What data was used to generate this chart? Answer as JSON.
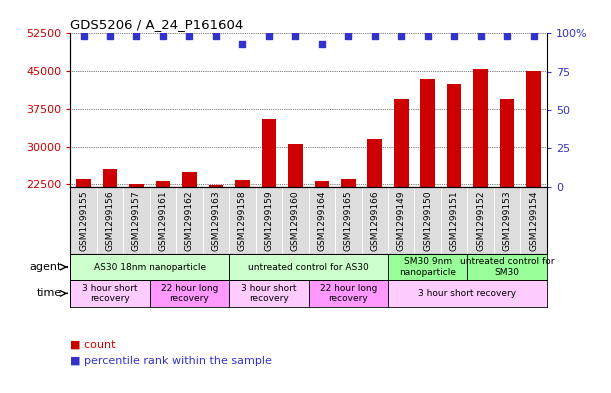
{
  "title": "GDS5206 / A_24_P161604",
  "samples": [
    "GSM1299155",
    "GSM1299156",
    "GSM1299157",
    "GSM1299161",
    "GSM1299162",
    "GSM1299163",
    "GSM1299158",
    "GSM1299159",
    "GSM1299160",
    "GSM1299164",
    "GSM1299165",
    "GSM1299166",
    "GSM1299149",
    "GSM1299150",
    "GSM1299151",
    "GSM1299152",
    "GSM1299153",
    "GSM1299154"
  ],
  "counts": [
    23500,
    25500,
    22600,
    23200,
    25000,
    22400,
    23300,
    35500,
    30500,
    23200,
    23500,
    31500,
    39500,
    43500,
    42500,
    45500,
    39500,
    45000
  ],
  "percentiles": [
    98,
    98,
    98,
    98,
    98,
    98,
    93,
    98,
    98,
    93,
    98,
    98,
    98,
    98,
    98,
    98,
    98,
    98
  ],
  "bar_color": "#cc0000",
  "dot_color": "#3333cc",
  "ymin": 22000,
  "ymax": 52500,
  "yticks": [
    22500,
    30000,
    37500,
    45000,
    52500
  ],
  "y2min": 0,
  "y2max": 100,
  "y2ticks": [
    0,
    25,
    50,
    75,
    100
  ],
  "agent_groups": [
    {
      "label": "AS30 18nm nanoparticle",
      "start": 0,
      "end": 6,
      "color": "#ccffcc"
    },
    {
      "label": "untreated control for AS30",
      "start": 6,
      "end": 12,
      "color": "#ccffcc"
    },
    {
      "label": "SM30 9nm\nnanoparticle",
      "start": 12,
      "end": 15,
      "color": "#99ff99"
    },
    {
      "label": "untreated control for\nSM30",
      "start": 15,
      "end": 18,
      "color": "#99ff99"
    }
  ],
  "time_groups": [
    {
      "label": "3 hour short\nrecovery",
      "start": 0,
      "end": 3,
      "color": "#ffccff"
    },
    {
      "label": "22 hour long\nrecovery",
      "start": 3,
      "end": 6,
      "color": "#ff99ff"
    },
    {
      "label": "3 hour short\nrecovery",
      "start": 6,
      "end": 9,
      "color": "#ffccff"
    },
    {
      "label": "22 hour long\nrecovery",
      "start": 9,
      "end": 12,
      "color": "#ff99ff"
    },
    {
      "label": "3 hour short recovery",
      "start": 12,
      "end": 18,
      "color": "#ffccff"
    }
  ],
  "legend_count_color": "#cc0000",
  "legend_dot_color": "#3333cc",
  "tick_label_color_left": "#cc0000",
  "tick_label_color_right": "#3333cc",
  "agent_label": "agent",
  "time_label": "time",
  "xlabels_bg": "#dddddd"
}
